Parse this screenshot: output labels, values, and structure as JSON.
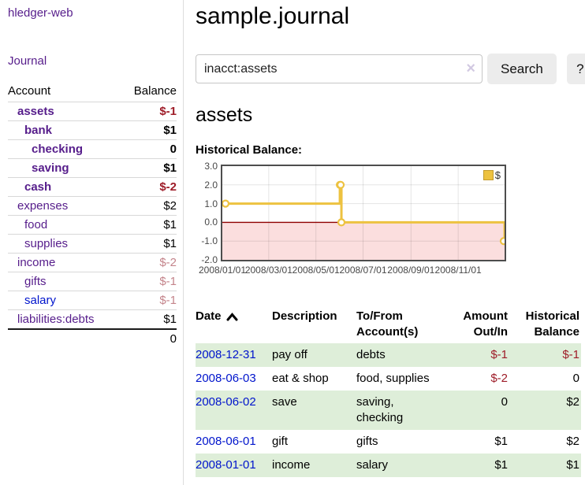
{
  "app_title": "hledger-web",
  "sidebar": {
    "journal_link": "Journal",
    "account_header": "Account",
    "balance_header": "Balance",
    "accounts": [
      {
        "name": "assets",
        "balance": "$-1",
        "indent": 1,
        "bold": true,
        "neg": "strong",
        "link": "visited"
      },
      {
        "name": "bank",
        "balance": "$1",
        "indent": 2,
        "bold": true,
        "neg": "none",
        "link": "visited"
      },
      {
        "name": "checking",
        "balance": "0",
        "indent": 3,
        "bold": true,
        "neg": "none",
        "link": "visited"
      },
      {
        "name": "saving",
        "balance": "$1",
        "indent": 3,
        "bold": true,
        "neg": "none",
        "link": "visited"
      },
      {
        "name": "cash",
        "balance": "$-2",
        "indent": 2,
        "bold": true,
        "neg": "strong",
        "link": "visited"
      },
      {
        "name": "expenses",
        "balance": "$2",
        "indent": 1,
        "bold": false,
        "neg": "none",
        "link": "visited"
      },
      {
        "name": "food",
        "balance": "$1",
        "indent": 2,
        "bold": false,
        "neg": "none",
        "link": "visited"
      },
      {
        "name": "supplies",
        "balance": "$1",
        "indent": 2,
        "bold": false,
        "neg": "none",
        "link": "visited"
      },
      {
        "name": "income",
        "balance": "$-2",
        "indent": 1,
        "bold": false,
        "neg": "soft",
        "link": "visited"
      },
      {
        "name": "gifts",
        "balance": "$-1",
        "indent": 2,
        "bold": false,
        "neg": "soft",
        "link": "visited"
      },
      {
        "name": "salary",
        "balance": "$-1",
        "indent": 2,
        "bold": false,
        "neg": "soft",
        "link": "unvisited"
      },
      {
        "name": "liabilities:debts",
        "balance": "$1",
        "indent": 1,
        "bold": false,
        "neg": "none",
        "link": "visited"
      }
    ],
    "total": "0"
  },
  "header": {
    "title": "sample.journal"
  },
  "search": {
    "value": "inacct:assets",
    "clear_icon": "×",
    "search_button": "Search",
    "help_button": "?"
  },
  "account_page": {
    "heading": "assets",
    "chart_title": "Historical Balance:"
  },
  "chart_data": {
    "type": "line",
    "step": true,
    "title": "Historical Balance",
    "legend": "$",
    "legend_position": "top-right",
    "series_color": "#edc240",
    "points": [
      {
        "date": "2008-01-01",
        "value": 1
      },
      {
        "date": "2008-06-01",
        "value": 2
      },
      {
        "date": "2008-06-02",
        "value": 2
      },
      {
        "date": "2008-06-03",
        "value": 0
      },
      {
        "date": "2008-12-31",
        "value": -1
      }
    ],
    "ylim": [
      -2,
      3
    ],
    "yticks": [
      "3.0",
      "2.0",
      "1.0",
      "0.0",
      "-1.0",
      "-2.0"
    ],
    "ytick_values": [
      3,
      2,
      1,
      0,
      -1,
      -2
    ],
    "xticks": [
      {
        "label": "2008/01/01",
        "day": 0
      },
      {
        "label": "2008/03/01",
        "day": 60
      },
      {
        "label": "2008/05/01",
        "day": 121
      },
      {
        "label": "2008/07/01",
        "day": 182
      },
      {
        "label": "2008/09/01",
        "day": 244
      },
      {
        "label": "2008/11/01",
        "day": 305
      }
    ],
    "x_range_days": 365,
    "grid": true,
    "negative_region_fill": "#fbdede",
    "zero_line_color": "#8e0000"
  },
  "register": {
    "headers": {
      "date": "Date",
      "sort_icon": "chevron-up",
      "description": "Description",
      "tofrom_l1": "To/From",
      "tofrom_l2": "Account(s)",
      "amount_l1": "Amount",
      "amount_l2": "Out/In",
      "hist_l1": "Historical",
      "hist_l2": "Balance"
    },
    "rows": [
      {
        "date": "2008-12-31",
        "description": "pay off",
        "accounts": "debts",
        "amount": "$-1",
        "balance": "$-1",
        "amount_neg": true,
        "balance_neg": true,
        "shaded": true
      },
      {
        "date": "2008-06-03",
        "description": "eat & shop",
        "accounts": "food, supplies",
        "amount": "$-2",
        "balance": "0",
        "amount_neg": true,
        "balance_neg": false,
        "shaded": false
      },
      {
        "date": "2008-06-02",
        "description": "save",
        "accounts": "saving, checking",
        "amount": "0",
        "balance": "$2",
        "amount_neg": false,
        "balance_neg": false,
        "shaded": true
      },
      {
        "date": "2008-06-01",
        "description": "gift",
        "accounts": "gifts",
        "amount": "$1",
        "balance": "$2",
        "amount_neg": false,
        "balance_neg": false,
        "shaded": false
      },
      {
        "date": "2008-01-01",
        "description": "income",
        "accounts": "salary",
        "amount": "$1",
        "balance": "$1",
        "amount_neg": false,
        "balance_neg": false,
        "shaded": true
      }
    ]
  },
  "colors": {
    "link_visited_purple": "#561d8b",
    "link_unvisited_blue": "#0014cc",
    "negative_strong_red": "#9e1c28",
    "negative_soft_rose": "#c4848b",
    "row_shade_green": "#deeed9",
    "series_gold": "#edc240",
    "plot_border_gray": "#4d4d4d"
  }
}
